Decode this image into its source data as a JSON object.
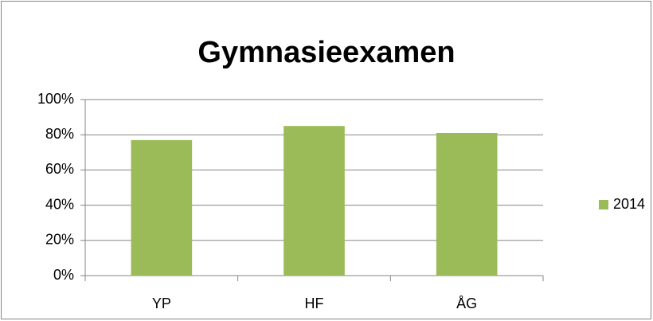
{
  "chart_data": {
    "type": "bar",
    "title": "Gymnasieexamen",
    "categories": [
      "YP",
      "HF",
      "ÅG"
    ],
    "series": [
      {
        "name": "2014",
        "color": "#9bbb59",
        "values": [
          77,
          85,
          81
        ]
      }
    ],
    "ylim": [
      0,
      100
    ],
    "yticks": [
      {
        "value": 0,
        "label": "0%"
      },
      {
        "value": 20,
        "label": "20%"
      },
      {
        "value": 40,
        "label": "40%"
      },
      {
        "value": 60,
        "label": "60%"
      },
      {
        "value": 80,
        "label": "80%"
      },
      {
        "value": 100,
        "label": "100%"
      }
    ],
    "grid": true,
    "legend": "right"
  }
}
